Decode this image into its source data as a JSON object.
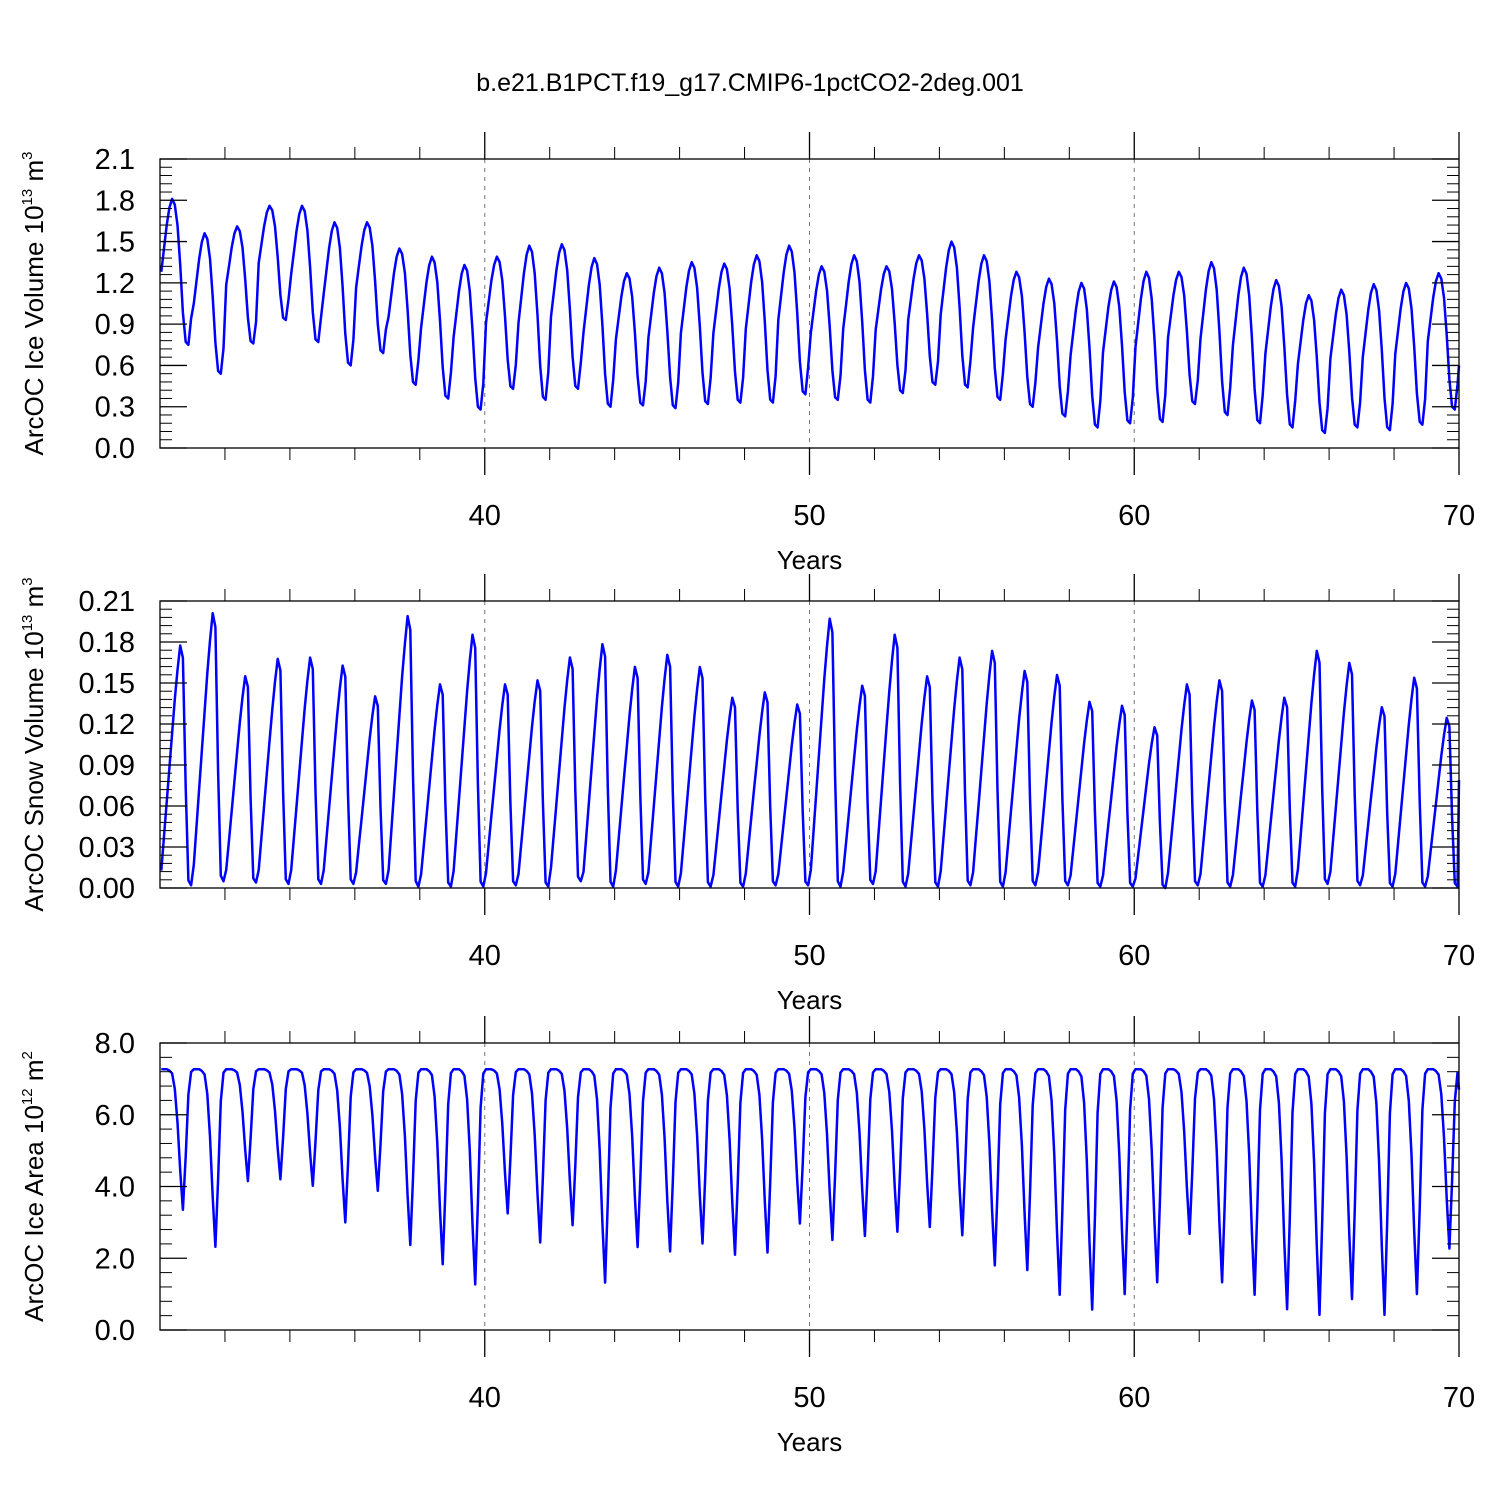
{
  "title": "b.e21.B1PCT.f19_g17.CMIP6-1pctCO2-2deg.001",
  "colors": {
    "line": "#0000ff",
    "axis": "#000000",
    "grid": "#777777"
  },
  "chart_data": [
    {
      "type": "line",
      "ylabel_main": "ArcOC Ice Volume 10",
      "ylabel_exp": "13",
      "ylabel_unit": " m",
      "ylabel_unit_exp": "3",
      "xlabel": "Years",
      "xlim": [
        30,
        70
      ],
      "ylim": [
        0,
        2.1
      ],
      "xticks": [
        40,
        50,
        60,
        70
      ],
      "xtick_labels": [
        "40",
        "50",
        "60",
        "70"
      ],
      "yticks": [
        0,
        0.3,
        0.6,
        0.9,
        1.2,
        1.5,
        1.8,
        2.1
      ],
      "ytick_labels": [
        "0.0",
        "0.3",
        "0.6",
        "0.9",
        "1.2",
        "1.5",
        "1.8",
        "2.1"
      ],
      "grid_x": [
        40,
        50,
        60
      ],
      "series": [
        {
          "name": "ArcOC Ice Volume",
          "start_year": 30.04,
          "step": 0.08333,
          "annual_max": [
            1.81,
            1.56,
            1.61,
            1.76,
            1.76,
            1.64,
            1.64,
            1.45,
            1.39,
            1.33,
            1.39,
            1.47,
            1.48,
            1.38,
            1.27,
            1.31,
            1.35,
            1.34,
            1.4,
            1.47,
            1.32,
            1.4,
            1.32,
            1.4,
            1.5,
            1.4,
            1.28,
            1.23,
            1.2,
            1.21,
            1.28,
            1.28,
            1.35,
            1.31,
            1.22,
            1.11,
            1.15,
            1.19,
            1.2,
            1.27
          ],
          "annual_min": [
            0.75,
            0.54,
            0.76,
            0.93,
            0.77,
            0.6,
            0.69,
            0.46,
            0.36,
            0.28,
            0.43,
            0.35,
            0.43,
            0.3,
            0.31,
            0.29,
            0.32,
            0.33,
            0.33,
            0.39,
            0.35,
            0.33,
            0.4,
            0.46,
            0.44,
            0.35,
            0.3,
            0.23,
            0.15,
            0.18,
            0.19,
            0.32,
            0.24,
            0.18,
            0.15,
            0.11,
            0.15,
            0.13,
            0.17,
            0.28
          ],
          "end_value": 0.6
        }
      ]
    },
    {
      "type": "line",
      "ylabel_main": "ArcOC Snow Volume 10",
      "ylabel_exp": "13",
      "ylabel_unit": " m",
      "ylabel_unit_exp": "3",
      "xlabel": "Years",
      "xlim": [
        30,
        70
      ],
      "ylim": [
        0,
        0.21
      ],
      "xticks": [
        40,
        50,
        60,
        70
      ],
      "xtick_labels": [
        "40",
        "50",
        "60",
        "70"
      ],
      "yticks": [
        0,
        0.03,
        0.06,
        0.09,
        0.12,
        0.15,
        0.18,
        0.21
      ],
      "ytick_labels": [
        "0.00",
        "0.03",
        "0.06",
        "0.09",
        "0.12",
        "0.15",
        "0.18",
        "0.21"
      ],
      "grid_x": [
        40,
        50,
        60
      ],
      "series": [
        {
          "name": "ArcOC Snow Volume",
          "start_year": 30.04,
          "step": 0.08333,
          "annual_max": [
            0.181,
            0.205,
            0.158,
            0.171,
            0.172,
            0.166,
            0.143,
            0.203,
            0.152,
            0.189,
            0.152,
            0.155,
            0.172,
            0.182,
            0.165,
            0.174,
            0.165,
            0.142,
            0.146,
            0.137,
            0.201,
            0.151,
            0.189,
            0.158,
            0.172,
            0.177,
            0.162,
            0.159,
            0.139,
            0.136,
            0.12,
            0.152,
            0.155,
            0.14,
            0.142,
            0.177,
            0.168,
            0.135,
            0.157,
            0.127
          ],
          "annual_min": [
            0.002,
            0.005,
            0.004,
            0.003,
            0.003,
            0.003,
            0.003,
            0.001,
            0.001,
            0.001,
            0.002,
            0.001,
            0.005,
            0.001,
            0.003,
            0.001,
            0.001,
            0.001,
            0.002,
            0.002,
            0.001,
            0.003,
            0.001,
            0.001,
            0.002,
            0.001,
            0.002,
            0.002,
            0.001,
            0.001,
            0.0,
            0.002,
            0.001,
            0.001,
            0.001,
            0.003,
            0.002,
            0.001,
            0.001,
            0.001
          ],
          "end_value": 0.079
        }
      ]
    },
    {
      "type": "line",
      "ylabel_main": "ArcOC Ice Area 10",
      "ylabel_exp": "12",
      "ylabel_unit": " m",
      "ylabel_unit_exp": "2",
      "xlabel": "Years",
      "xlim": [
        30,
        70
      ],
      "ylim": [
        0,
        8.0
      ],
      "xticks": [
        40,
        50,
        60,
        70
      ],
      "xtick_labels": [
        "40",
        "50",
        "60",
        "70"
      ],
      "yticks": [
        0,
        2,
        4,
        6,
        8
      ],
      "ytick_labels": [
        "0.0",
        "2.0",
        "4.0",
        "6.0",
        "8.0"
      ],
      "grid_x": [
        40,
        50,
        60
      ],
      "series": [
        {
          "name": "ArcOC Ice Area",
          "start_year": 30.04,
          "step": 0.08333,
          "annual_max": [
            7.27,
            7.27,
            7.27,
            7.27,
            7.27,
            7.27,
            7.27,
            7.27,
            7.27,
            7.27,
            7.27,
            7.27,
            7.27,
            7.27,
            7.27,
            7.27,
            7.27,
            7.27,
            7.27,
            7.27,
            7.27,
            7.27,
            7.27,
            7.27,
            7.27,
            7.27,
            7.27,
            7.27,
            7.27,
            7.27,
            7.27,
            7.27,
            7.27,
            7.27,
            7.27,
            7.27,
            7.27,
            7.27,
            7.27,
            7.27
          ],
          "annual_min": [
            3.35,
            2.32,
            4.15,
            4.2,
            4.02,
            3.0,
            3.88,
            2.37,
            1.83,
            1.27,
            3.25,
            2.44,
            2.92,
            1.32,
            2.31,
            2.19,
            2.41,
            2.1,
            2.16,
            2.97,
            2.51,
            2.62,
            2.74,
            2.87,
            2.64,
            1.8,
            1.67,
            0.98,
            0.57,
            1.0,
            1.33,
            2.68,
            1.33,
            0.98,
            0.58,
            0.42,
            0.86,
            0.42,
            1.0,
            2.27
          ],
          "end_value": 6.7
        }
      ]
    }
  ]
}
